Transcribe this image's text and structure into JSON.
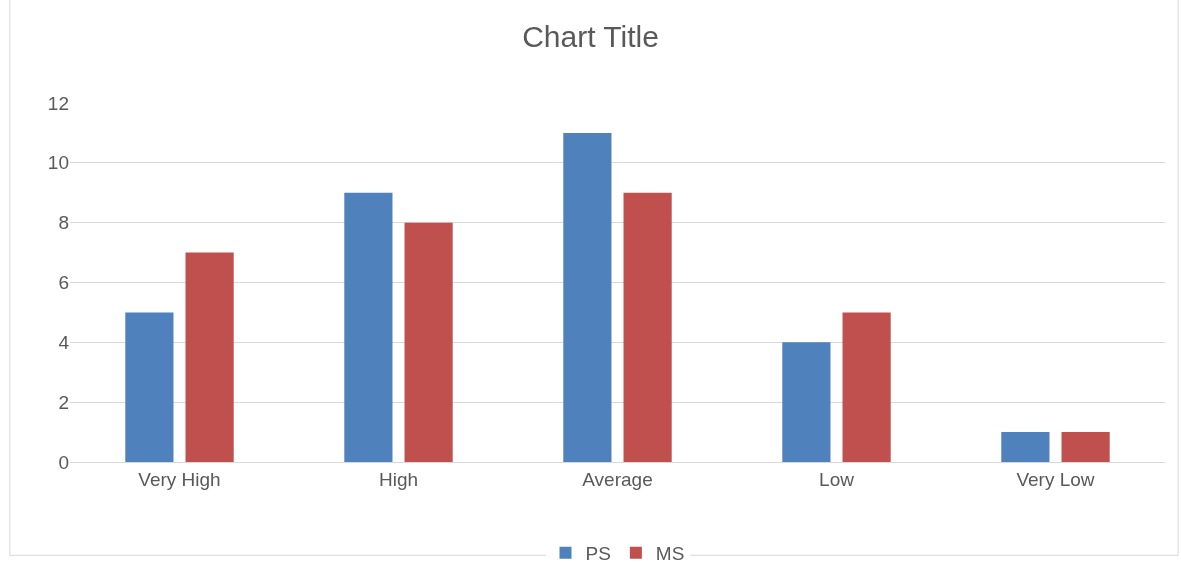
{
  "chart_data": {
    "type": "bar",
    "title": "Chart Title",
    "categories": [
      "Very High",
      "High",
      "Average",
      "Low",
      "Very Low"
    ],
    "series": [
      {
        "name": "PS",
        "color": "#4f81bd",
        "values": [
          5,
          9,
          11,
          4,
          1
        ]
      },
      {
        "name": "MS",
        "color": "#c0504d",
        "values": [
          7,
          8,
          9,
          5,
          1
        ]
      }
    ],
    "ylim": [
      0,
      12
    ],
    "yticks": [
      0,
      2,
      4,
      6,
      8,
      10,
      12
    ],
    "grid": "y",
    "legend": "bottom"
  }
}
